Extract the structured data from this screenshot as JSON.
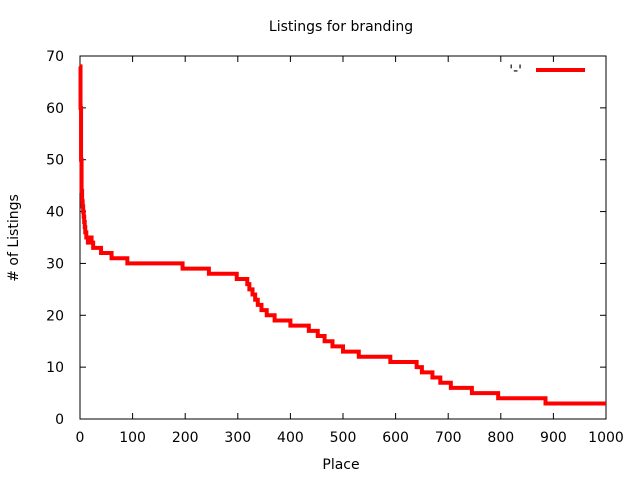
{
  "chart_data": {
    "type": "line",
    "title": "Listings for branding",
    "xlabel": "Place",
    "ylabel": "# of Listings",
    "xlim": [
      0,
      1000
    ],
    "ylim": [
      0,
      70
    ],
    "x_ticks": [
      0,
      100,
      200,
      300,
      400,
      500,
      600,
      700,
      800,
      900,
      1000
    ],
    "y_ticks": [
      0,
      10,
      20,
      30,
      40,
      50,
      60,
      70
    ],
    "x_tick_labels": [
      "0",
      "100",
      "200",
      "300",
      "400",
      "500",
      "600",
      "700",
      "800",
      "900",
      "1000"
    ],
    "y_tick_labels": [
      "0",
      "10",
      "20",
      "30",
      "40",
      "50",
      "60",
      "70"
    ],
    "grid": false,
    "legend": {
      "position": "top-right",
      "entries": [
        {
          "label": "'-'",
          "color": "#ff0000"
        }
      ]
    },
    "series": [
      {
        "color": "#ff0000",
        "step": true,
        "x": [
          0,
          1,
          2,
          3,
          4,
          5,
          6,
          7,
          8,
          9,
          10,
          12,
          15,
          18,
          22,
          25,
          30,
          40,
          60,
          90,
          195,
          245,
          298,
          310,
          318,
          322,
          328,
          333,
          338,
          345,
          355,
          370,
          382,
          400,
          435,
          452,
          465,
          480,
          500,
          530,
          590,
          640,
          650,
          670,
          685,
          705,
          745,
          795,
          885,
          1000
        ],
        "y": [
          68,
          60,
          50,
          44,
          42,
          41,
          40,
          39,
          38,
          37,
          36,
          35,
          34,
          35,
          34,
          33,
          33,
          32,
          31,
          30,
          29,
          28,
          27,
          27,
          26,
          25,
          24,
          23,
          22,
          21,
          20,
          19,
          19,
          18,
          17,
          16,
          15,
          14,
          13,
          12,
          11,
          10,
          9,
          8,
          7,
          6,
          5,
          4,
          3,
          3
        ]
      }
    ]
  }
}
